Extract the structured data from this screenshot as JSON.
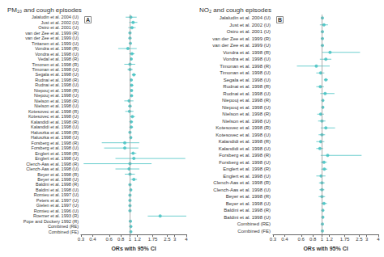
{
  "chart_data": [
    {
      "type": "forest",
      "title": "PM₁₀ and cough episodes",
      "label": "A",
      "categories": [
        "Jalaludin et al. 2004 (U)",
        "Just et al. 2002 (U)",
        "Ostro et al. 2001 (U)",
        "van der Zee et al. 1999 (R)",
        "van der Zee et al. 1999 (U)",
        "Tirttanen et al. 1999 (U)",
        "Vondra et al. 1998 (R)",
        "Vondra et al. 1998 (U)",
        "Vedal et al. 1998 (R)",
        "Timonen et al. 1998 (R)",
        "Timonan et al. 1998 (U)",
        "Segala et al. 1998 (U)",
        "Rudnai et al. 1998 (R)",
        "Rudnai et al. 1998 (U)",
        "Niepouj et al. 1998 (R)",
        "Niepouj et al. 1998 (U)",
        "Nielson et al. 1998 (R)",
        "Nielson et al. 1998 (U)",
        "Kotesovec et al. 1998 (R)",
        "Kotesovec et al. 1998 (U)",
        "Kalandidi et al. 1998 (R)",
        "Kalandidi et al. 1998 (U)",
        "Haluszka et al. 1998 (R)",
        "Haluszka et al. 1998 (U)",
        "Forsberg et al. 1998 (R)",
        "Forsberg et al. 1998 (U)",
        "Englert et al. 1998 (R)",
        "Englert et al. 1998 (U)",
        "Clench-Aas et al. 1998 (R)",
        "Clench-Aas et al. 1998 (U)",
        "Beyer et al. 1998 (R)",
        "Beyer et al. 1998 (U)",
        "Baldini et al. 1998 (R)",
        "Baldini et al. 1998 (U)",
        "Romieu et al. 1997 (U)",
        "Peters et al. 1997 (U)",
        "Gielen et al. 1997 (U)",
        "Romieu et al. 1996 (U)",
        "Roemer et al. 1993 (R)",
        "Pope and Dockery 1992 (R)",
        "Combined (RE)",
        "Combined (FE)"
      ],
      "values": [
        1.02,
        1.08,
        1.05,
        1.0,
        1.0,
        1.01,
        0.95,
        1.05,
        1.03,
        1.0,
        1.0,
        1.1,
        1.03,
        1.04,
        1.04,
        1.04,
        0.98,
        1.0,
        0.99,
        1.06,
        1.03,
        1.03,
        1.0,
        1.02,
        0.88,
        0.88,
        1.08,
        1.1,
        1.0,
        0.98,
        1.0,
        1.1,
        1.0,
        1.02,
        1.0,
        1.0,
        1.0,
        1.0,
        2.1,
        1.01,
        1.02,
        1.02
      ],
      "lo": [
        0.9,
        0.98,
        0.96,
        0.97,
        0.97,
        0.98,
        0.75,
        0.98,
        1.0,
        0.87,
        0.94,
        1.05,
        0.99,
        1.0,
        1.01,
        1.01,
        0.87,
        0.96,
        0.89,
        1.0,
        0.98,
        0.98,
        0.97,
        0.99,
        0.5,
        0.53,
        1.0,
        0.7,
        0.32,
        0.7,
        0.88,
        1.02,
        0.97,
        0.99,
        0.97,
        0.97,
        0.97,
        0.97,
        1.55,
        0.97,
        0.99,
        1.0
      ],
      "hi": [
        1.18,
        1.2,
        1.15,
        1.03,
        1.03,
        1.04,
        1.18,
        1.12,
        1.06,
        1.14,
        1.07,
        1.16,
        1.07,
        1.09,
        1.07,
        1.07,
        1.09,
        1.04,
        1.09,
        1.13,
        1.08,
        1.08,
        1.03,
        1.05,
        1.26,
        1.23,
        1.17,
        3.9,
        1.7,
        1.26,
        1.13,
        1.19,
        1.03,
        1.05,
        1.03,
        1.03,
        1.03,
        1.03,
        4.0,
        1.05,
        1.05,
        1.04
      ],
      "xlabel": "ORs with 95% CI",
      "xlim": [
        0.3,
        4.0
      ],
      "xticks": [
        0.3,
        0.4,
        0.6,
        0.8,
        1,
        1.2,
        1.75,
        2.5,
        3,
        4
      ],
      "log": "x",
      "grid": false,
      "color": "#3DBFBF",
      "vline": 1
    },
    {
      "type": "forest",
      "title": "NO₂ and cough episodes",
      "label": "B",
      "categories": [
        "Jalaludin et al. 2004 (U)",
        "Just et al. 2002 (U)",
        "Ostro et al. 2001 (U)",
        "van der Zee et al. 1999 (R)",
        "van der Zee et al. 1999 (U)",
        "Vondra et al. 1998 (R)",
        "Vondra et al. 1998 (U)",
        "Timonan et al. 1998 (R)",
        "Timonan et al. 1998 (U)",
        "Segala et al. 1998 (U)",
        "Rudnai et al. 1998 (R)",
        "Rudnai et al. 1998 (U)",
        "Niepouj et al. 1998 (R)",
        "Niepouj et al. 1998 (U)",
        "Nielson et al. 1998 (R)",
        "Nielson et al. 1998 (U)",
        "Kotesovec et al. 1998 (R)",
        "Kotesovec et al. 1998 (U)",
        "Kalandidi et al. 1998 (R)",
        "Kalandidi et al. 1998 (U)",
        "Forsberg et al. 1998 (R)",
        "Forsberg et al. 1998 (U)",
        "Englert et al. 1998 (R)",
        "Englert et al. 1998 (U)",
        "Clench-Aas et al. 1998 (R)",
        "Clench-Aas et al. 1998 (U)",
        "Beyer et al. 1998 (R)",
        "Beyer et al. 1998 (U)",
        "Baldini et al. 1998 (R)",
        "Baldini et al. 1998 (U)",
        "Combined (RE)",
        "Combined (FE)"
      ],
      "values": [
        1.01,
        1.05,
        1.01,
        1.01,
        1.01,
        1.22,
        1.1,
        0.87,
        0.97,
        1.1,
        0.96,
        1.08,
        1.02,
        1.02,
        0.97,
        1.0,
        1.1,
        1.0,
        0.97,
        0.95,
        1.15,
        1.05,
        1.06,
        0.98,
        1.0,
        1.0,
        1.0,
        1.05,
        1.02,
        1.02,
        1.01,
        1.01
      ],
      "lo": [
        0.98,
        0.95,
        0.98,
        0.98,
        0.98,
        1.0,
        0.95,
        0.54,
        0.87,
        1.05,
        0.87,
        0.96,
        0.99,
        0.99,
        0.89,
        0.91,
        0.97,
        0.92,
        0.87,
        0.87,
        0.97,
        0.97,
        0.98,
        0.87,
        0.93,
        0.94,
        0.92,
        0.98,
        0.99,
        0.99,
        0.99,
        1.0
      ],
      "hi": [
        1.04,
        1.16,
        1.04,
        1.04,
        1.04,
        2.55,
        1.26,
        1.21,
        1.06,
        1.16,
        1.05,
        1.36,
        1.05,
        1.05,
        1.05,
        1.09,
        1.38,
        1.08,
        1.06,
        1.03,
        2.65,
        1.13,
        1.14,
        1.09,
        1.07,
        1.06,
        1.08,
        1.13,
        1.05,
        1.05,
        1.03,
        1.03
      ],
      "xlabel": "ORs with 95% CI",
      "xlim": [
        0.3,
        4.0
      ],
      "xticks": [
        0.3,
        0.4,
        0.6,
        0.8,
        1,
        1.2,
        1.75,
        2.5,
        3,
        4
      ],
      "log": "x",
      "grid": false,
      "color": "#3DBFBF",
      "vline": 1
    }
  ]
}
